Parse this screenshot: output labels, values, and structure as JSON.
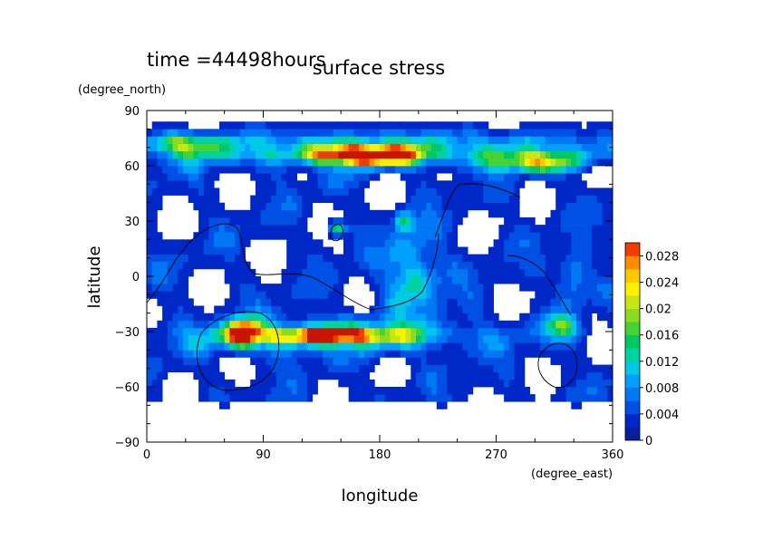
{
  "chart_data": {
    "type": "heatmap",
    "title": "surface stress",
    "subtitle": "time =44498hours",
    "xlabel": "longitude",
    "ylabel": "latitude",
    "xunits": "(degree_east)",
    "yunits": "(degree_north)",
    "xlim": [
      0,
      360
    ],
    "ylim": [
      -90,
      90
    ],
    "xticks": [
      "0",
      "90",
      "180",
      "270",
      "360"
    ],
    "yticks": [
      "90",
      "60",
      "30",
      "0",
      "−30",
      "−60",
      "−90"
    ],
    "colorbar": {
      "ticks": [
        "0.028",
        "0.024",
        "0.02",
        "0.016",
        "0.012",
        "0.008",
        "0.004",
        "0"
      ],
      "levels": [
        0,
        0.002,
        0.004,
        0.006,
        0.008,
        0.01,
        0.012,
        0.014,
        0.016,
        0.018,
        0.02,
        0.022,
        0.024,
        0.026,
        0.028,
        0.03
      ],
      "colors": [
        "#ffffff",
        "#0a1ea0",
        "#0028c8",
        "#0050e6",
        "#0078f5",
        "#00a0ff",
        "#00c8e6",
        "#00d2a0",
        "#00c864",
        "#46d232",
        "#8cdc1e",
        "#c8e614",
        "#fff000",
        "#ffc800",
        "#ff8c00",
        "#f03c00",
        "#c81400"
      ],
      "range": [
        0,
        0.03
      ]
    },
    "features": [
      {
        "name": "northern jet",
        "lon": [
          20,
          340
        ],
        "lat": [
          55,
          80
        ],
        "peak": 0.014
      },
      {
        "name": "northern maximum",
        "lon": [
          115,
          230
        ],
        "lat": [
          57,
          73
        ],
        "peak": 0.034
      },
      {
        "name": "southern maximum",
        "lon": [
          40,
          210
        ],
        "lat": [
          -40,
          -22
        ],
        "peak": 0.034
      },
      {
        "name": "tropical spot",
        "lon": [
          140,
          155
        ],
        "lat": [
          21,
          31
        ],
        "peak": 0.016
      },
      {
        "name": "equatorial band",
        "lon": [
          170,
          230
        ],
        "lat": [
          -20,
          35
        ],
        "peak": 0.012
      }
    ],
    "grid": false
  }
}
